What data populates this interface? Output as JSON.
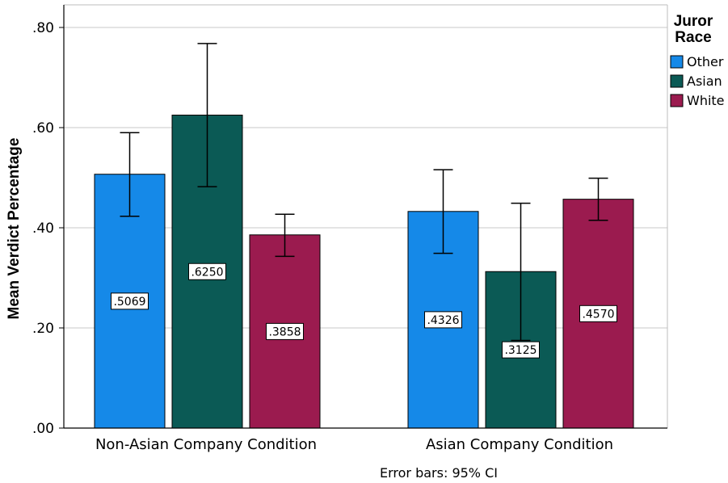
{
  "chart_data": {
    "type": "bar",
    "ylabel": "Mean Verdict Percentage",
    "ylim": [
      0,
      0.8
    ],
    "yticks": [
      0,
      0.2,
      0.4,
      0.6,
      0.8
    ],
    "ytick_labels": [
      ".00",
      ".20",
      ".40",
      ".60",
      ".80"
    ],
    "grid": true,
    "categories": [
      "Non-Asian Company Condition",
      "Asian Company Condition"
    ],
    "legend": {
      "title": [
        "Juror",
        "Race"
      ],
      "placement": "top-right"
    },
    "series": [
      {
        "name": "Other",
        "color": "#1589e8",
        "values": [
          0.5069,
          0.4326
        ],
        "value_labels": [
          ".5069",
          ".4326"
        ],
        "ci_low": [
          0.423,
          0.349
        ],
        "ci_high": [
          0.59,
          0.516
        ]
      },
      {
        "name": "Asian",
        "color": "#0b5a55",
        "values": [
          0.625,
          0.3125
        ],
        "value_labels": [
          ".6250",
          ".3125"
        ],
        "ci_low": [
          0.482,
          0.175
        ],
        "ci_high": [
          0.768,
          0.449
        ]
      },
      {
        "name": "White",
        "color": "#9b1b4f",
        "values": [
          0.3858,
          0.457
        ],
        "value_labels": [
          ".3858",
          ".4570"
        ],
        "ci_low": [
          0.343,
          0.415
        ],
        "ci_high": [
          0.427,
          0.499
        ]
      }
    ],
    "footnote": "Error bars: 95% CI"
  }
}
